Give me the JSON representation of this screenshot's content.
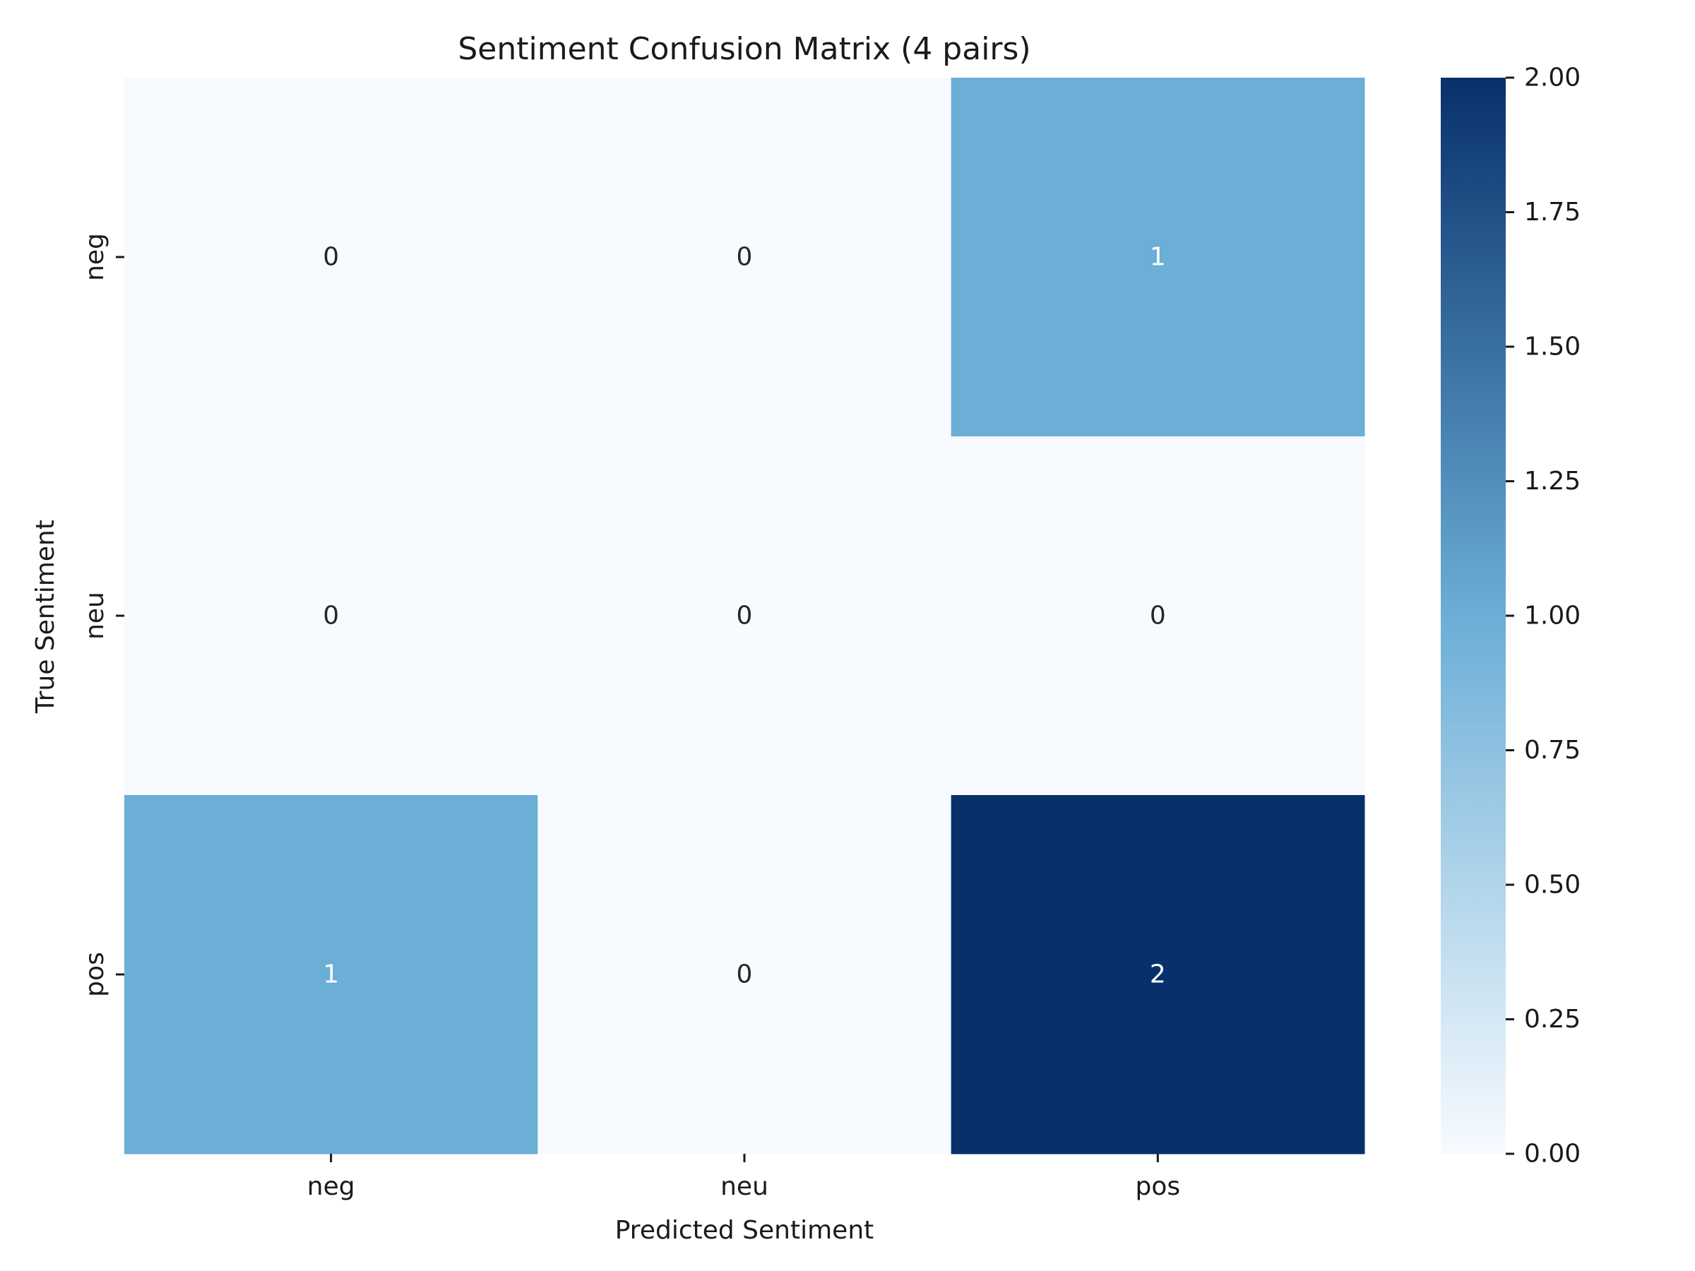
{
  "chart_data": {
    "type": "heatmap",
    "title": "Sentiment Confusion Matrix (4 pairs)",
    "xlabel": "Predicted Sentiment",
    "ylabel": "True Sentiment",
    "x_categories": [
      "neg",
      "neu",
      "pos"
    ],
    "y_categories": [
      "neg",
      "neu",
      "pos"
    ],
    "values": [
      [
        0,
        0,
        1
      ],
      [
        0,
        0,
        0
      ],
      [
        1,
        0,
        2
      ]
    ],
    "colorbar": {
      "vmin": 0,
      "vmax": 2,
      "ticks": [
        "0.00",
        "0.25",
        "0.50",
        "0.75",
        "1.00",
        "1.25",
        "1.50",
        "1.75",
        "2.00"
      ],
      "colormap": "Blues",
      "low_color": "#f7fbff",
      "mid_color": "#6baed6",
      "high_color": "#08306b"
    },
    "annotation_colors": {
      "dark": "#262626",
      "light": "#ffffff"
    },
    "grid": false
  }
}
